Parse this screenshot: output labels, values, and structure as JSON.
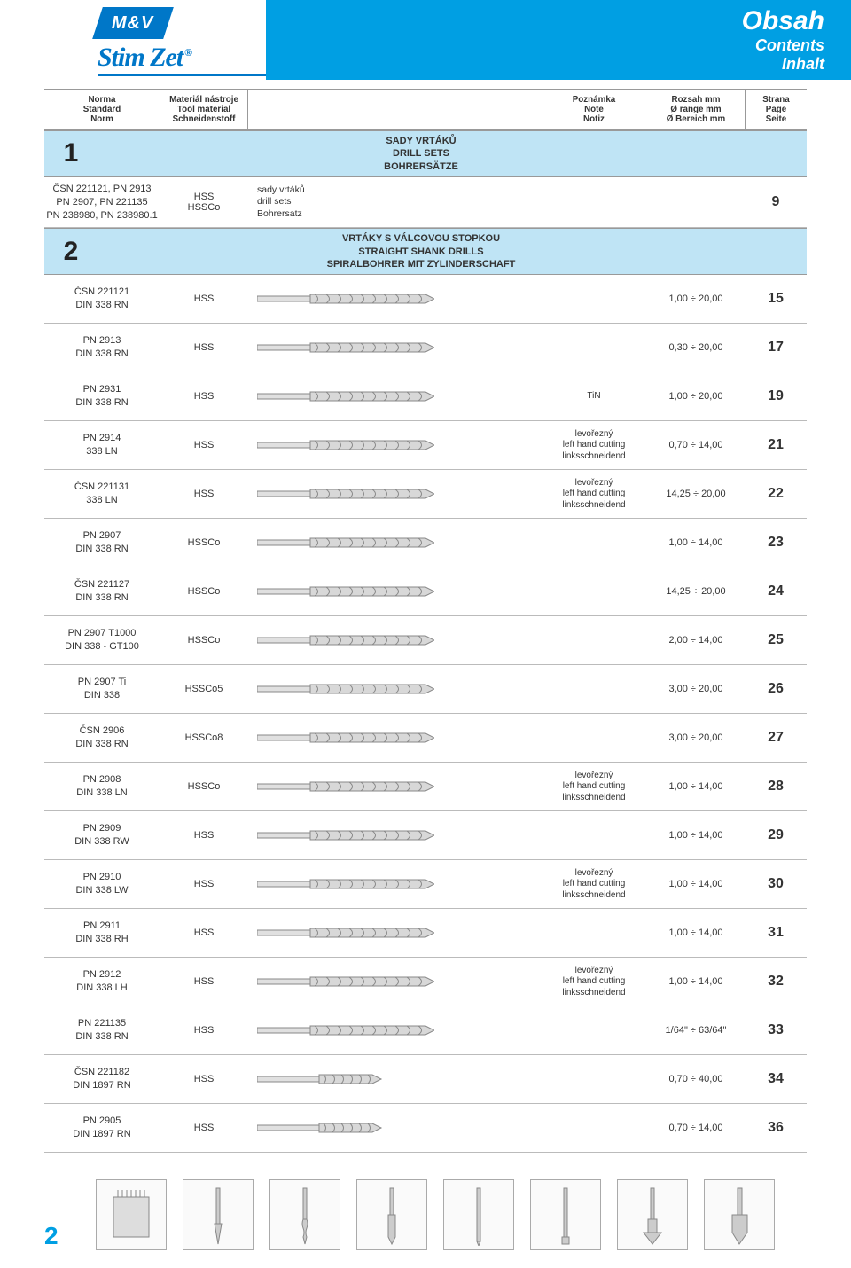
{
  "header": {
    "logo_top": "M&V",
    "logo_bottom": "Stim Zet",
    "title1": "Obsah",
    "title2": "Contents",
    "title3": "Inhalt"
  },
  "columns": {
    "norm": [
      "Norma",
      "Standard",
      "Norm"
    ],
    "mat": [
      "Materiál nástroje",
      "Tool material",
      "Schneidenstoff"
    ],
    "note": [
      "Poznámka",
      "Note",
      "Notiz"
    ],
    "range": [
      "Rozsah mm",
      "Ø range mm",
      "Ø Bereich mm"
    ],
    "page": [
      "Strana",
      "Page",
      "Seite"
    ]
  },
  "sections": [
    {
      "num": "1",
      "title": [
        "SADY VRTÁKŮ",
        "DRILL SETS",
        "BOHRERSÄTZE"
      ],
      "rows": [
        {
          "norm": [
            "ČSN 221121, PN 2913",
            "PN 2907, PN 221135",
            "PN 238980, PN 238980.1"
          ],
          "mat": "HSS\nHSSCo",
          "note": [
            "sady vrtáků",
            "drill sets",
            "Bohrersatz"
          ],
          "note_pos": "left",
          "range": "",
          "page": "9",
          "drill": false
        }
      ]
    },
    {
      "num": "2",
      "title": [
        "VRTÁKY S VÁLCOVOU STOPKOU",
        "STRAIGHT SHANK DRILLS",
        "SPIRALBOHRER MIT ZYLINDERSCHAFT"
      ],
      "rows": [
        {
          "norm": [
            "ČSN 221121",
            "DIN 338 RN"
          ],
          "mat": "HSS",
          "note": [],
          "range": "1,00 ÷ 20,00",
          "page": "15",
          "drill": "long"
        },
        {
          "norm": [
            "PN 2913",
            "DIN 338 RN"
          ],
          "mat": "HSS",
          "note": [],
          "range": "0,30 ÷ 20,00",
          "page": "17",
          "drill": "long"
        },
        {
          "norm": [
            "PN 2931",
            "DIN 338 RN"
          ],
          "mat": "HSS",
          "note": [
            "TiN"
          ],
          "range": "1,00 ÷ 20,00",
          "page": "19",
          "drill": "long"
        },
        {
          "norm": [
            "PN 2914",
            "338 LN"
          ],
          "mat": "HSS",
          "note": [
            "levořezný",
            "left hand cutting",
            "linksschneidend"
          ],
          "range": "0,70 ÷ 14,00",
          "page": "21",
          "drill": "long"
        },
        {
          "norm": [
            "ČSN 221131",
            "338 LN"
          ],
          "mat": "HSS",
          "note": [
            "levořezný",
            "left hand cutting",
            "linksschneidend"
          ],
          "range": "14,25 ÷ 20,00",
          "page": "22",
          "drill": "long"
        },
        {
          "norm": [
            "PN 2907",
            "DIN 338 RN"
          ],
          "mat": "HSSCo",
          "note": [],
          "range": "1,00 ÷ 14,00",
          "page": "23",
          "drill": "long"
        },
        {
          "norm": [
            "ČSN 221127",
            "DIN 338 RN"
          ],
          "mat": "HSSCo",
          "note": [],
          "range": "14,25 ÷ 20,00",
          "page": "24",
          "drill": "long"
        },
        {
          "norm": [
            "PN 2907 T1000",
            "DIN 338 - GT100"
          ],
          "mat": "HSSCo",
          "note": [],
          "range": "2,00 ÷ 14,00",
          "page": "25",
          "drill": "long"
        },
        {
          "norm": [
            "PN 2907 Ti",
            "DIN 338"
          ],
          "mat": "HSSCo5",
          "note": [],
          "range": "3,00 ÷ 20,00",
          "page": "26",
          "drill": "long"
        },
        {
          "norm": [
            "ČSN 2906",
            "DIN 338 RN"
          ],
          "mat": "HSSCo8",
          "note": [],
          "range": "3,00 ÷ 20,00",
          "page": "27",
          "drill": "long"
        },
        {
          "norm": [
            "PN 2908",
            "DIN 338 LN"
          ],
          "mat": "HSSCo",
          "note": [
            "levořezný",
            "left hand cutting",
            "linksschneidend"
          ],
          "range": "1,00 ÷ 14,00",
          "page": "28",
          "drill": "long"
        },
        {
          "norm": [
            "PN 2909",
            "DIN 338 RW"
          ],
          "mat": "HSS",
          "note": [],
          "range": "1,00 ÷ 14,00",
          "page": "29",
          "drill": "long"
        },
        {
          "norm": [
            "PN 2910",
            "DIN 338 LW"
          ],
          "mat": "HSS",
          "note": [
            "levořezný",
            "left hand cutting",
            "linksschneidend"
          ],
          "range": "1,00 ÷ 14,00",
          "page": "30",
          "drill": "long"
        },
        {
          "norm": [
            "PN 2911",
            "DIN 338 RH"
          ],
          "mat": "HSS",
          "note": [],
          "range": "1,00 ÷ 14,00",
          "page": "31",
          "drill": "long"
        },
        {
          "norm": [
            "PN 2912",
            "DIN 338 LH"
          ],
          "mat": "HSS",
          "note": [
            "levořezný",
            "left hand cutting",
            "linksschneidend"
          ],
          "range": "1,00 ÷ 14,00",
          "page": "32",
          "drill": "long"
        },
        {
          "norm": [
            "PN 221135",
            "DIN 338 RN"
          ],
          "mat": "HSS",
          "note": [],
          "range": "1/64\" ÷ 63/64\"",
          "page": "33",
          "drill": "long"
        },
        {
          "norm": [
            "ČSN 221182",
            "DIN 1897 RN"
          ],
          "mat": "HSS",
          "note": [],
          "range": "0,70 ÷ 40,00",
          "page": "34",
          "drill": "short"
        },
        {
          "norm": [
            "PN 2905",
            "DIN 1897 RN"
          ],
          "mat": "HSS",
          "note": [],
          "range": "0,70 ÷ 14,00",
          "page": "36",
          "drill": "short"
        }
      ]
    }
  ],
  "footer_page": "2"
}
